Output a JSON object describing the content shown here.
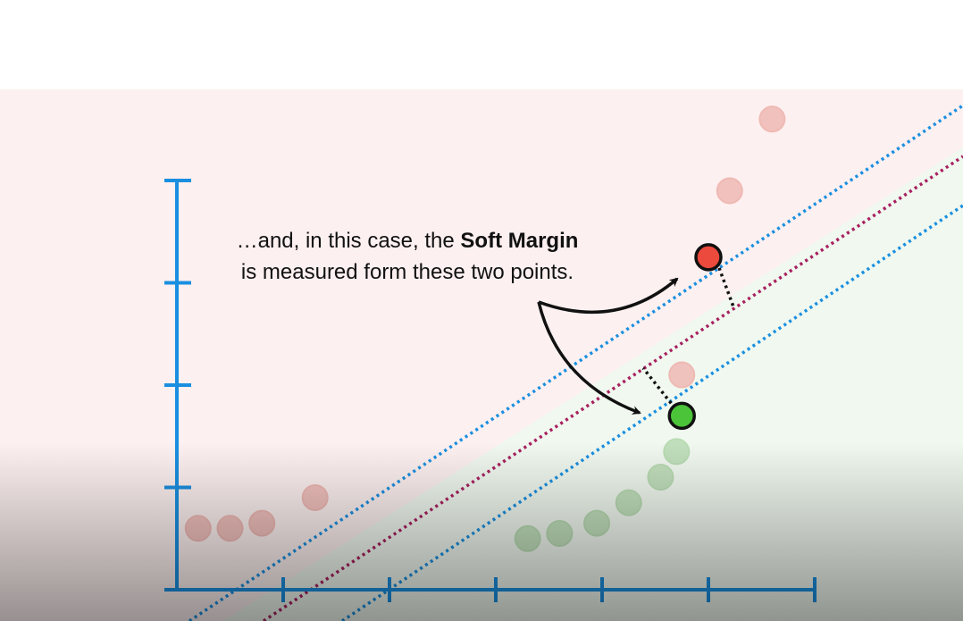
{
  "caption": {
    "part1": "…and, in this case, the ",
    "bold1": "Soft",
    "part2": " ",
    "bold2": "Margin",
    "part3": " is measured form these two points."
  },
  "colors": {
    "background_top": "#ffffff",
    "region_red": "#fdf0f0",
    "region_green": "#f0f8ef",
    "axis": "#1a8fe0",
    "margin_line": "#1a8fe0",
    "threshold_line": "#a8205f",
    "point_red_faded": "#efb9b4",
    "point_green_faded": "#b9dbb3",
    "point_red_support": "#ec4a3c",
    "point_green_support": "#4cc43a",
    "arrow": "#111111"
  },
  "icons": [
    "curved-arrow-icon"
  ],
  "chart_data": {
    "type": "scatter",
    "title": "",
    "xlabel": "",
    "ylabel": "",
    "x_ticks": 7,
    "y_ticks": 4,
    "grid": false,
    "series": [
      {
        "values": [
          [
            0.2,
            0.6
          ],
          [
            0.5,
            0.6
          ],
          [
            0.8,
            0.65
          ],
          [
            1.3,
            0.9
          ],
          [
            3.3,
            0.5
          ],
          [
            3.6,
            0.55
          ],
          [
            3.95,
            0.65
          ],
          [
            4.25,
            0.85
          ],
          [
            4.55,
            1.1
          ],
          [
            4.7,
            1.35
          ],
          [
            4.75,
            2.1
          ],
          [
            5.2,
            3.9
          ],
          [
            5.6,
            4.6
          ]
        ]
      },
      {
        "values": [
          [
            4.75,
            1.7
          ]
        ]
      },
      {
        "values": [
          [
            5.0,
            3.25
          ]
        ]
      }
    ]
  }
}
